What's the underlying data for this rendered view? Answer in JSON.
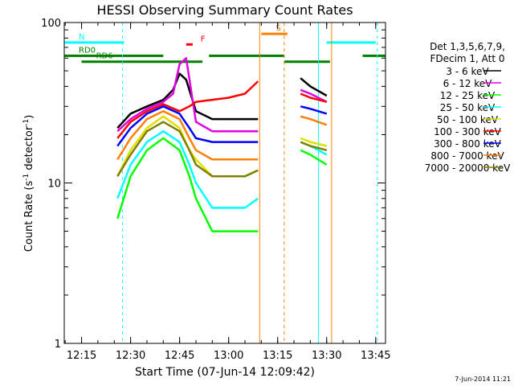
{
  "chart_data": {
    "type": "line",
    "title": "HESSI Observing Summary Count Rates",
    "xlabel": "Start Time (07-Jun-14 12:09:42)",
    "ylabel": "Count Rate (s",
    "ylabel_sup": "-1",
    "ylabel_tail": " detector",
    "ylabel_tail_sup": "-1",
    "ylabel_close": ")",
    "xlim": [
      "12:09:42",
      "13:48:00"
    ],
    "ylim": [
      1,
      100
    ],
    "yscale": "log",
    "x_ticks": [
      "12:15",
      "12:30",
      "12:45",
      "13:00",
      "13:15",
      "13:30",
      "13:45"
    ],
    "y_ticks": [
      "1",
      "10",
      "100"
    ],
    "grid": false,
    "legend_position": "right",
    "legend_header": [
      "Det 1,3,5,6,7,9,",
      "FDecim 1, Att 0"
    ],
    "timestamp": "7-Jun-2014 11:21",
    "data_gaps": [
      [
        "12:23",
        "12:26"
      ],
      [
        "13:10",
        "13:22"
      ],
      [
        "13:31",
        "13:48"
      ]
    ],
    "series": [
      {
        "name": "3 - 6 keV",
        "color": "#000000",
        "x": [
          "12:26",
          "12:30",
          "12:35",
          "12:40",
          "12:43",
          "12:45",
          "12:47",
          "12:50",
          "12:55",
          "13:00",
          "13:05",
          "13:09",
          "13:22",
          "13:25",
          "13:30"
        ],
        "y": [
          22,
          27,
          30,
          33,
          38,
          48,
          44,
          28,
          25,
          25,
          25,
          25,
          45,
          40,
          35
        ]
      },
      {
        "name": "6 - 12 keV",
        "color": "#e000e0",
        "x": [
          "12:26",
          "12:30",
          "12:35",
          "12:40",
          "12:43",
          "12:45",
          "12:47",
          "12:50",
          "12:55",
          "13:00",
          "13:05",
          "13:09",
          "13:22",
          "13:25",
          "13:30"
        ],
        "y": [
          21,
          25,
          29,
          32,
          36,
          55,
          60,
          24,
          21,
          21,
          21,
          21,
          38,
          36,
          32
        ]
      },
      {
        "name": "12 - 25 keV",
        "color": "#00ff00",
        "x": [
          "12:26",
          "12:30",
          "12:35",
          "12:40",
          "12:45",
          "12:48",
          "12:50",
          "12:55",
          "13:00",
          "13:05",
          "13:09",
          "13:22",
          "13:25",
          "13:30"
        ],
        "y": [
          6,
          11,
          16,
          19,
          16,
          11,
          8,
          5,
          5,
          5,
          5,
          16,
          15,
          13
        ]
      },
      {
        "name": "25 - 50 keV",
        "color": "#00ffff",
        "x": [
          "12:26",
          "12:30",
          "12:35",
          "12:40",
          "12:45",
          "12:48",
          "12:50",
          "12:55",
          "13:00",
          "13:05",
          "13:09",
          "13:22",
          "13:25",
          "13:30"
        ],
        "y": [
          8,
          13,
          18,
          21,
          18,
          13,
          10,
          7,
          7,
          7,
          8,
          18,
          17,
          15
        ]
      },
      {
        "name": "50 - 100 keV",
        "color": "#e0e000",
        "x": [
          "12:26",
          "12:30",
          "12:35",
          "12:40",
          "12:45",
          "12:48",
          "12:50",
          "12:55",
          "13:00",
          "13:05",
          "13:09",
          "13:22",
          "13:25",
          "13:30"
        ],
        "y": [
          11,
          16,
          22,
          26,
          22,
          16,
          14,
          11,
          11,
          11,
          12,
          19,
          18,
          17
        ]
      },
      {
        "name": "100 - 300 keV",
        "color": "#ff0000",
        "x": [
          "12:26",
          "12:30",
          "12:35",
          "12:40",
          "12:45",
          "12:48",
          "12:50",
          "12:55",
          "13:00",
          "13:05",
          "13:09",
          "13:22",
          "13:25",
          "13:30"
        ],
        "y": [
          19,
          24,
          28,
          31,
          28,
          30,
          32,
          33,
          34,
          36,
          43,
          36,
          34,
          32
        ]
      },
      {
        "name": "300 - 800 keV",
        "color": "#0000ff",
        "x": [
          "12:26",
          "12:30",
          "12:35",
          "12:40",
          "12:45",
          "12:48",
          "12:50",
          "12:55",
          "13:00",
          "13:05",
          "13:09",
          "13:22",
          "13:25",
          "13:30"
        ],
        "y": [
          17,
          22,
          27,
          30,
          27,
          22,
          19,
          18,
          18,
          18,
          18,
          30,
          29,
          27
        ]
      },
      {
        "name": "800 - 7000 keV",
        "color": "#ff8000",
        "x": [
          "12:26",
          "12:30",
          "12:35",
          "12:40",
          "12:45",
          "12:48",
          "12:50",
          "12:55",
          "13:00",
          "13:05",
          "13:09",
          "13:22",
          "13:25",
          "13:30"
        ],
        "y": [
          14,
          19,
          25,
          28,
          25,
          19,
          16,
          14,
          14,
          14,
          14,
          26,
          25,
          23
        ]
      },
      {
        "name": "7000 - 20000 keV",
        "color": "#808000",
        "x": [
          "12:26",
          "12:30",
          "12:35",
          "12:40",
          "12:45",
          "12:48",
          "12:50",
          "12:55",
          "13:00",
          "13:05",
          "13:09",
          "13:22",
          "13:25",
          "13:30"
        ],
        "y": [
          11,
          15,
          21,
          24,
          21,
          16,
          13,
          11,
          11,
          11,
          12,
          18,
          17,
          16
        ]
      }
    ],
    "flag_bars": [
      {
        "label": "N",
        "color": "#00ffff",
        "level": 75,
        "segments": [
          [
            "12:09:42",
            "12:28"
          ],
          [
            "13:30",
            "13:45"
          ]
        ]
      },
      {
        "label": "RD0",
        "color": "#008000",
        "level": 62,
        "segments": [
          [
            "12:09:42",
            "12:40"
          ],
          [
            "12:54",
            "13:17"
          ],
          [
            "13:41",
            "13:48"
          ]
        ]
      },
      {
        "label": "RD6",
        "color": "#008000",
        "level": 57,
        "segments": [
          [
            "12:15",
            "12:52"
          ],
          [
            "13:17",
            "13:31"
          ]
        ]
      },
      {
        "label": "S",
        "color": "#ff8000",
        "level": 85,
        "segments": [
          [
            "13:10",
            "13:18"
          ]
        ]
      },
      {
        "label": "F",
        "color": "#ff0000",
        "level": 73,
        "segments": [
          [
            "12:47",
            "12:49"
          ]
        ]
      }
    ],
    "markers": [
      {
        "at": "12:09:42",
        "color": "#00ffff",
        "style": "solid"
      },
      {
        "at": "12:27:30",
        "color": "#00ffff",
        "style": "dashed"
      },
      {
        "at": "13:09:30",
        "color": "#ff8000",
        "style": "solid"
      },
      {
        "at": "13:17:00",
        "color": "#ff8000",
        "style": "dashed"
      },
      {
        "at": "13:27:30",
        "color": "#00ffff",
        "style": "solid"
      },
      {
        "at": "13:31:30",
        "color": "#ff8000",
        "style": "solid"
      },
      {
        "at": "13:45:30",
        "color": "#00ffff",
        "style": "dashed"
      }
    ]
  }
}
